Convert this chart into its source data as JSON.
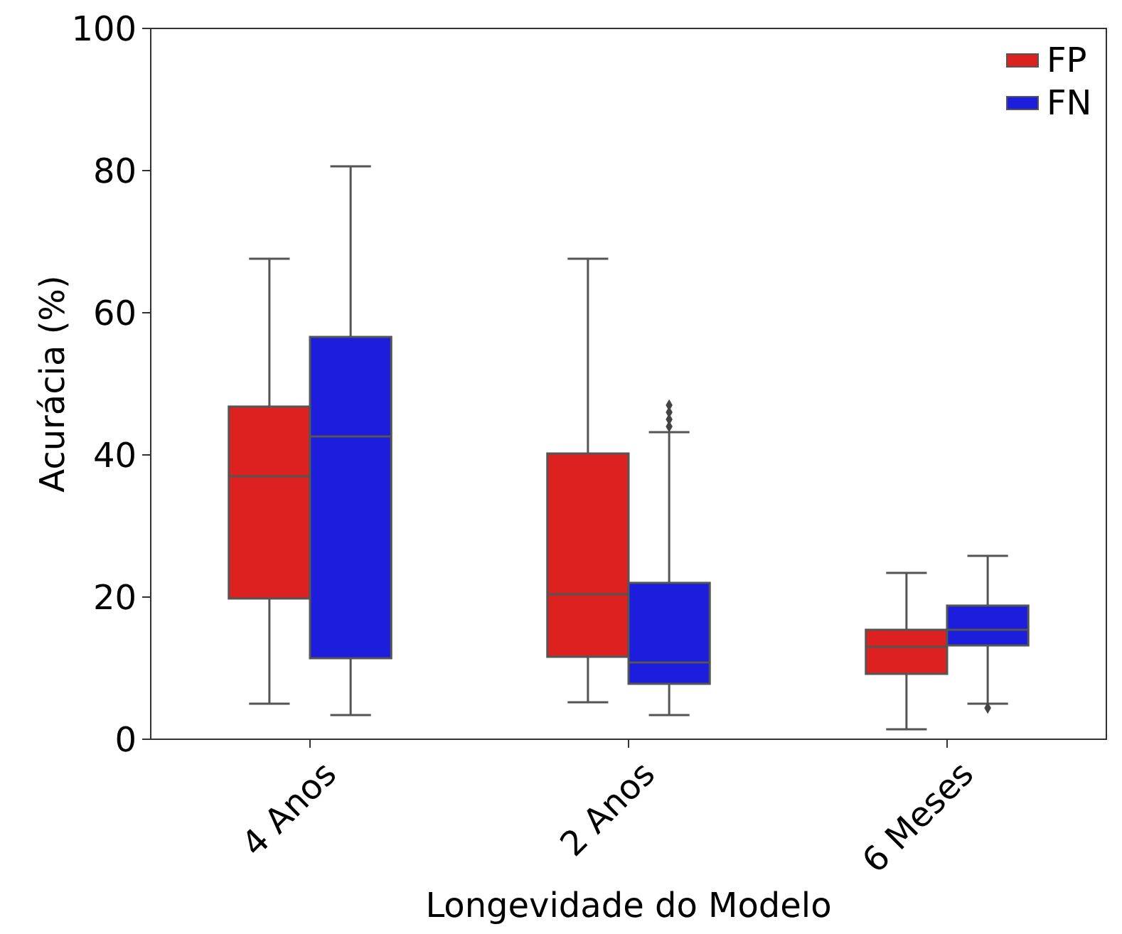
{
  "chart_data": {
    "type": "box",
    "xlabel": "Longevidade do Modelo",
    "ylabel": "Acurácia (%)",
    "categories": [
      "4 Anos",
      "2 Anos",
      "6 Meses"
    ],
    "ylim": [
      0,
      100
    ],
    "yticks": [
      0,
      20,
      40,
      60,
      80,
      100
    ],
    "legend": "top right",
    "grid": false,
    "series": [
      {
        "name": "FP",
        "color": "#dd2020",
        "boxes": [
          {
            "low": 5,
            "q1": 19.8,
            "median": 37,
            "q3": 46.8,
            "high": 67.6
          },
          {
            "low": 5.2,
            "q1": 11.6,
            "median": 20.4,
            "q3": 40.2,
            "high": 67.6
          },
          {
            "low": 1.4,
            "q1": 9.2,
            "median": 13,
            "q3": 15.4,
            "high": 23.4
          }
        ]
      },
      {
        "name": "FN",
        "color": "#1d1ddd",
        "boxes": [
          {
            "low": 3.4,
            "q1": 11.4,
            "median": 42.6,
            "q3": 56.6,
            "high": 80.6
          },
          {
            "low": 3.4,
            "q1": 7.8,
            "median": 10.8,
            "q3": 22,
            "high": 43.2,
            "outliers": [
              44,
              45,
              46,
              47
            ]
          },
          {
            "low": 5,
            "q1": 13.2,
            "median": 15.4,
            "q3": 18.8,
            "high": 25.8,
            "outliers": [
              4.4
            ]
          }
        ]
      }
    ]
  }
}
